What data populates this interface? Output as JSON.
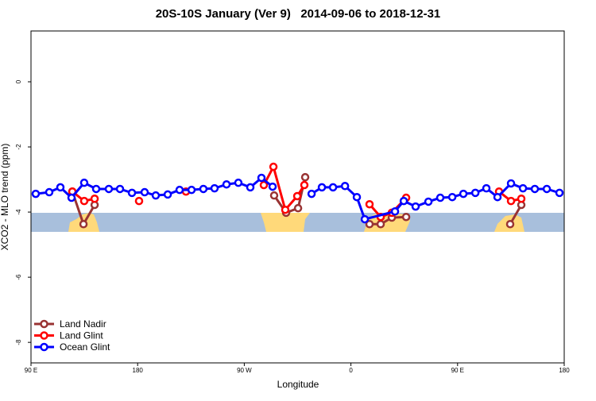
{
  "chart_data": {
    "type": "line",
    "title": "20S-10S January (Ver 9)   2014-09-06 to 2018-12-31",
    "x_label": "Longitude",
    "y_label": "XCO2 - MLO trend (ppm)",
    "xlim": [
      90,
      540
    ],
    "xticks": [
      {
        "value": 90,
        "label": "90 E"
      },
      180,
      {
        "value": 270,
        "label": "90 W"
      },
      {
        "value": 360,
        "label": "0"
      },
      {
        "value": 450,
        "label": "90 E"
      },
      {
        "value": 540,
        "label": "180"
      }
    ],
    "ylim": [
      -8.63,
      1.56
    ],
    "yticks": [
      0,
      -2,
      -4,
      -6,
      -8
    ],
    "legend": "bottom-left",
    "series": [
      {
        "name": "Land Nadir",
        "color": "#993333",
        "x": [
          124.9,
          134.3,
          143.7,
          null,
          295.2,
          305.3,
          315.4,
          321.4,
          null,
          375.7,
          385.1,
          394.5,
          406.6,
          null,
          494.4,
          503.8
        ],
        "values": [
          -3.37,
          -4.37,
          -3.78,
          null,
          -3.49,
          -4.02,
          -3.88,
          -2.93,
          null,
          -4.37,
          -4.37,
          -4.17,
          -4.15,
          null,
          -4.37,
          -3.78
        ]
      },
      {
        "name": "Land Glint",
        "color": "#ff0000",
        "x": [
          124.9,
          134.9,
          143.7,
          null,
          181.2,
          null,
          220.8,
          null,
          286.5,
          294.6,
          304.6,
          314.7,
          320.7,
          null,
          375.7,
          385.1,
          394.5,
          406.6,
          null,
          485.0,
          495.1,
          503.8
        ],
        "values": [
          -3.37,
          -3.66,
          -3.59,
          null,
          -3.66,
          null,
          -3.37,
          null,
          -3.17,
          -2.61,
          -3.93,
          -3.51,
          -3.17,
          null,
          -3.76,
          -4.15,
          -4.02,
          -3.56,
          null,
          -3.37,
          -3.66,
          -3.59
        ]
      },
      {
        "name": "Ocean Glint",
        "color": "#0000ff",
        "x": [
          94.0,
          105.4,
          114.8,
          124.2,
          134.9,
          145.0,
          155.7,
          165.1,
          175.2,
          185.9,
          195.3,
          205.4,
          215.4,
          225.5,
          235.5,
          244.9,
          255.0,
          265.0,
          275.1,
          284.5,
          293.9,
          null,
          326.8,
          335.5,
          344.9,
          355.0,
          365.0,
          371.7,
          397.2,
          404.6,
          414.6,
          425.4,
          435.4,
          445.5,
          454.9,
          465.0,
          474.3,
          483.7,
          495.1,
          505.2,
          515.2,
          525.3,
          536.0
        ],
        "values": [
          -3.44,
          -3.39,
          -3.24,
          -3.56,
          -3.1,
          -3.29,
          -3.29,
          -3.29,
          -3.41,
          -3.39,
          -3.49,
          -3.46,
          -3.32,
          -3.32,
          -3.29,
          -3.27,
          -3.15,
          -3.1,
          -3.24,
          -2.95,
          -3.22,
          null,
          -3.44,
          -3.24,
          -3.24,
          -3.2,
          -3.54,
          -4.22,
          -3.98,
          -3.66,
          -3.83,
          -3.68,
          -3.56,
          -3.54,
          -3.44,
          -3.41,
          -3.27,
          -3.54,
          -3.12,
          -3.27,
          -3.29,
          -3.29,
          -3.41
        ]
      }
    ]
  }
}
